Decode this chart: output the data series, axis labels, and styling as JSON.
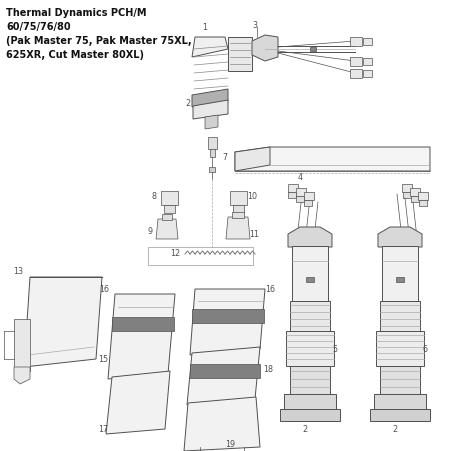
{
  "title_lines": [
    "Thermal Dynamics PCH/M",
    "60/75/76/80",
    "(Pak Master 75, Pak Master 75XL,",
    "625XR, Cut Master 80XL)"
  ],
  "bg_color": "#ffffff",
  "line_color": "#505050",
  "label_color": "#505050",
  "label_fontsize": 5.8,
  "title_fontsize": 7.0,
  "fig_width": 4.52,
  "fig_height": 4.52,
  "dpi": 100
}
